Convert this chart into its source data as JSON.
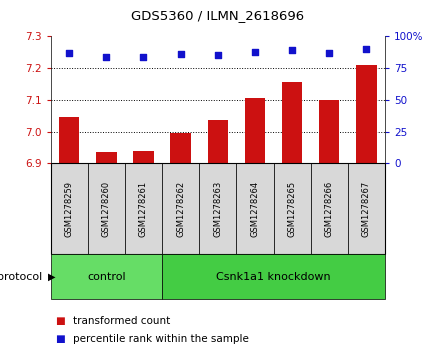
{
  "title": "GDS5360 / ILMN_2618696",
  "samples": [
    "GSM1278259",
    "GSM1278260",
    "GSM1278261",
    "GSM1278262",
    "GSM1278263",
    "GSM1278264",
    "GSM1278265",
    "GSM1278266",
    "GSM1278267"
  ],
  "bar_values": [
    7.045,
    6.935,
    6.94,
    6.995,
    7.035,
    7.105,
    7.155,
    7.1,
    7.21
  ],
  "dot_values": [
    87,
    84,
    84,
    86,
    85,
    88,
    89,
    87,
    90
  ],
  "bar_bottom": 6.9,
  "ylim_left": [
    6.9,
    7.3
  ],
  "ylim_right": [
    0,
    100
  ],
  "yticks_left": [
    6.9,
    7.0,
    7.1,
    7.2,
    7.3
  ],
  "yticks_right": [
    0,
    25,
    50,
    75,
    100
  ],
  "bar_color": "#cc1111",
  "dot_color": "#1111cc",
  "cell_bg_color": "#d8d8d8",
  "plot_bg_color": "#ffffff",
  "control_label": "control",
  "knockdown_label": "Csnk1a1 knockdown",
  "protocol_label": "protocol",
  "control_count": 3,
  "knockdown_count": 6,
  "legend_bar_label": "transformed count",
  "legend_dot_label": "percentile rank within the sample",
  "control_color": "#66dd66",
  "knockdown_color": "#44cc44"
}
